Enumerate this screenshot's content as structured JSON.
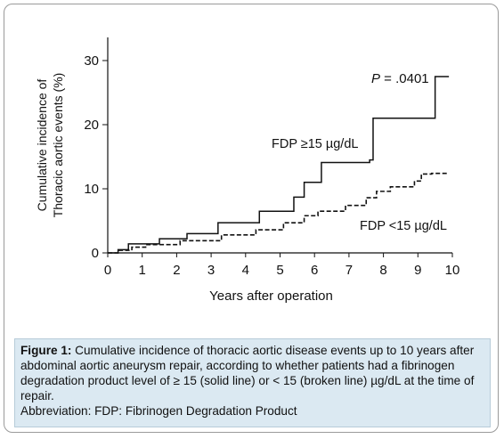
{
  "chart_data": {
    "type": "line",
    "style": "step",
    "xlabel": "Years after operation",
    "ylabel_lines": [
      "Cumulative incidence of",
      "Thoracic aortic events (%)"
    ],
    "xlim": [
      0,
      10
    ],
    "ylim": [
      0,
      35
    ],
    "xticks": [
      "0",
      "1",
      "2",
      "3",
      "4",
      "5",
      "6",
      "7",
      "8",
      "9",
      "10"
    ],
    "yticks": [
      "0",
      "10",
      "20",
      "30"
    ],
    "grid": false,
    "p_value": {
      "italic": "P",
      "rest": " = .0401"
    },
    "series": [
      {
        "name": "FDP ≥15 µg/dL",
        "linestyle": "solid",
        "x": [
          0,
          0.3,
          0.6,
          1.5,
          2.3,
          3.2,
          4.4,
          5.4,
          5.7,
          6.2,
          7.6,
          7.7,
          9.5,
          9.9
        ],
        "y": [
          0,
          0.5,
          1.4,
          2.2,
          3.0,
          4.7,
          6.5,
          8.7,
          11.0,
          14.1,
          14.5,
          21.0,
          27.5,
          27.5
        ]
      },
      {
        "name": "FDP <15 µg/dL",
        "linestyle": "dashed",
        "x": [
          0,
          0.3,
          0.7,
          1.1,
          2.1,
          3.3,
          4.3,
          5.1,
          5.7,
          6.1,
          6.9,
          7.5,
          7.8,
          8.2,
          8.9,
          9.1,
          9.4,
          9.9
        ],
        "y": [
          0,
          0.4,
          0.9,
          1.3,
          1.9,
          2.8,
          3.6,
          4.7,
          5.8,
          6.5,
          7.4,
          8.6,
          9.6,
          10.3,
          11.2,
          12.3,
          12.4,
          12.4
        ]
      }
    ]
  },
  "caption": {
    "label": "Figure 1:",
    "text": " Cumulative incidence of thoracic aortic disease events up to 10 years after abdominal aortic aneurysm repair, according to whether patients had a fibrinogen degradation product level of ≥ 15 (solid line) or < 15 (broken line) µg/dL at the time of repair.",
    "abbreviation": "Abbreviation: FDP: Fibrinogen Degradation Product"
  }
}
